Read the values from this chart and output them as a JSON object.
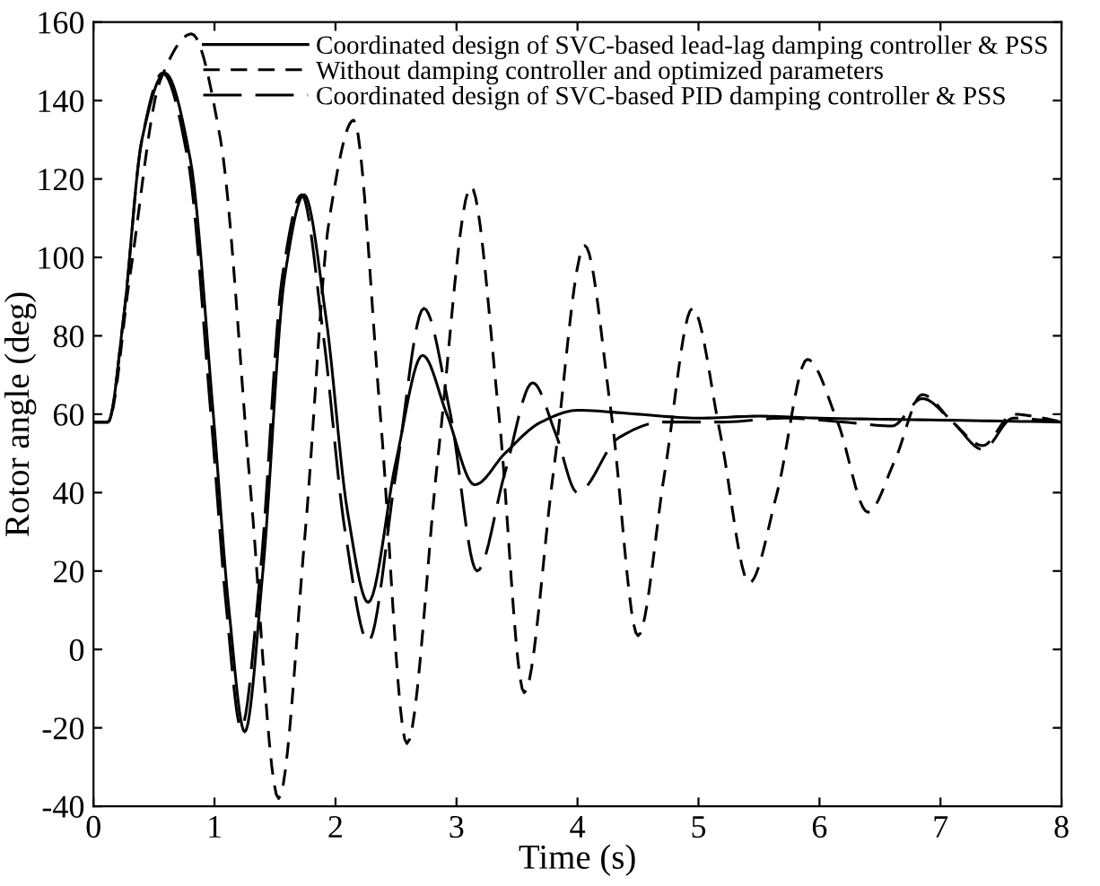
{
  "chart_data": {
    "type": "line",
    "xlabel": "Time (s)",
    "ylabel": "Rotor angle (deg)",
    "xlim": [
      0,
      8
    ],
    "xticks": [
      0,
      1,
      2,
      3,
      4,
      5,
      6,
      7,
      8
    ],
    "ylim": [
      -40,
      160
    ],
    "yticks": [
      -40,
      -20,
      0,
      20,
      40,
      60,
      80,
      100,
      120,
      140,
      160
    ],
    "grid": false,
    "legend": "top right",
    "series": [
      {
        "name": "Coordinated design of SVC-based lead-lag damping controller & PSS",
        "color": "#000000",
        "line_style": "solid",
        "x": [
          0,
          0.12,
          0.25,
          0.4,
          0.59,
          0.8,
          0.99,
          1.12,
          1.25,
          1.4,
          1.58,
          1.74,
          1.92,
          2.1,
          2.27,
          2.5,
          2.72,
          2.92,
          3.15,
          3.4,
          3.7,
          4.0,
          4.5,
          5.0,
          5.5,
          6.0,
          7.0,
          8.0
        ],
        "values": [
          58,
          58,
          85,
          130,
          147,
          125,
          60,
          10,
          -21,
          20,
          95,
          116,
          85,
          35,
          12,
          48,
          75,
          60,
          42,
          50,
          58,
          61,
          60,
          59,
          59.5,
          59,
          58.5,
          58
        ]
      },
      {
        "name": "Without damping controller and optimized parameters",
        "color": "#000000",
        "line_style": "dashed",
        "x": [
          0,
          0.12,
          0.3,
          0.55,
          0.81,
          1.05,
          1.3,
          1.53,
          1.75,
          1.95,
          2.15,
          2.37,
          2.59,
          2.85,
          3.12,
          3.35,
          3.56,
          3.8,
          4.06,
          4.28,
          4.5,
          4.72,
          4.95,
          5.18,
          5.42,
          5.65,
          5.9,
          6.15,
          6.4,
          6.62,
          6.85,
          7.1,
          7.35,
          7.6,
          7.85,
          8.0
        ],
        "values": [
          58,
          58,
          95,
          145,
          157,
          130,
          40,
          -38,
          30,
          110,
          135,
          60,
          -24,
          50,
          118,
          60,
          -11,
          45,
          103,
          60,
          3.5,
          45,
          87,
          55,
          17,
          40,
          74,
          58,
          35,
          48,
          65,
          58,
          52,
          60,
          59,
          58
        ]
      },
      {
        "name": "Coordinated design of SVC-based PID damping controller & PSS",
        "color": "#000000",
        "line_style": "longdash",
        "x": [
          0,
          0.12,
          0.25,
          0.4,
          0.57,
          0.78,
          0.97,
          1.1,
          1.22,
          1.38,
          1.56,
          1.72,
          1.9,
          2.08,
          2.27,
          2.5,
          2.73,
          2.95,
          3.17,
          3.4,
          3.63,
          3.82,
          4.0,
          4.34,
          4.7,
          5.2,
          5.7,
          6.2,
          6.6,
          6.85,
          7.1,
          7.35,
          7.6,
          8.0
        ],
        "values": [
          58,
          58,
          85,
          130,
          147,
          125,
          60,
          10,
          -20,
          20,
          95,
          116,
          80,
          30,
          2,
          45,
          87,
          60,
          20,
          45,
          68,
          55,
          40,
          54,
          58,
          58,
          59,
          58,
          57,
          64,
          58,
          51,
          59,
          58
        ]
      }
    ]
  }
}
